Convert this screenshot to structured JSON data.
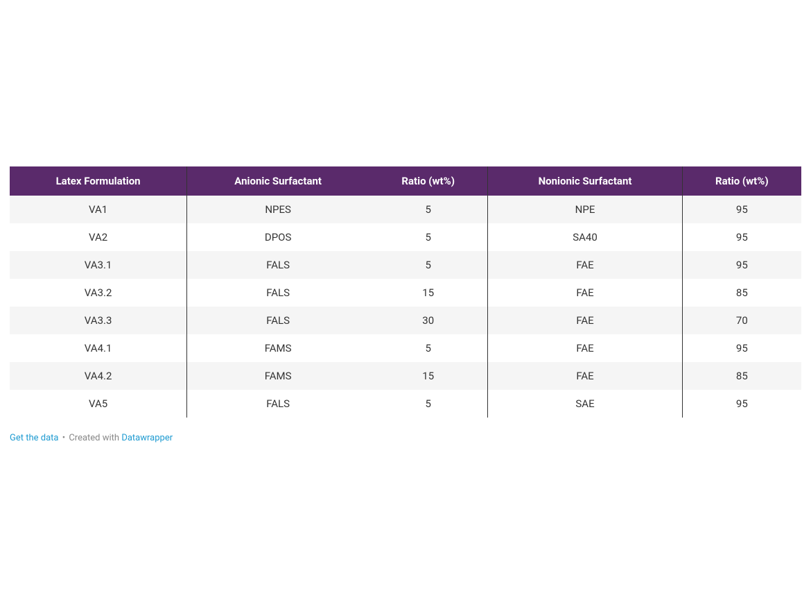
{
  "table": {
    "type": "table",
    "header_bg": "#5a2a6b",
    "header_text_color": "#ffffff",
    "row_odd_bg": "#f5f5f5",
    "row_even_bg": "#ffffff",
    "cell_text_color": "#333333",
    "separator_color": "#333333",
    "font_size": 15,
    "columns": [
      "Latex Formulation",
      "Anionic Surfactant",
      "Ratio (wt%)",
      "Nonionic Surfactant",
      "Ratio (wt%)"
    ],
    "rows": [
      [
        "VA1",
        "NPES",
        "5",
        "NPE",
        "95"
      ],
      [
        "VA2",
        "DPOS",
        "5",
        "SA40",
        "95"
      ],
      [
        "VA3.1",
        "FALS",
        "5",
        "FAE",
        "95"
      ],
      [
        "VA3.2",
        "FALS",
        "15",
        "FAE",
        "85"
      ],
      [
        "VA3.3",
        "FALS",
        "30",
        "FAE",
        "70"
      ],
      [
        "VA4.1",
        "FAMS",
        "5",
        "FAE",
        "95"
      ],
      [
        "VA4.2",
        "FAMS",
        "15",
        "FAE",
        "85"
      ],
      [
        "VA5",
        "FALS",
        "5",
        "SAE",
        "95"
      ]
    ],
    "column_separators_after": [
      0,
      2,
      3
    ]
  },
  "footer": {
    "get_data_label": "Get the data",
    "separator": " • ",
    "created_with_label": "Created with ",
    "brand_label": "Datawrapper",
    "link_color": "#1f9bd1",
    "text_color": "#888888"
  }
}
